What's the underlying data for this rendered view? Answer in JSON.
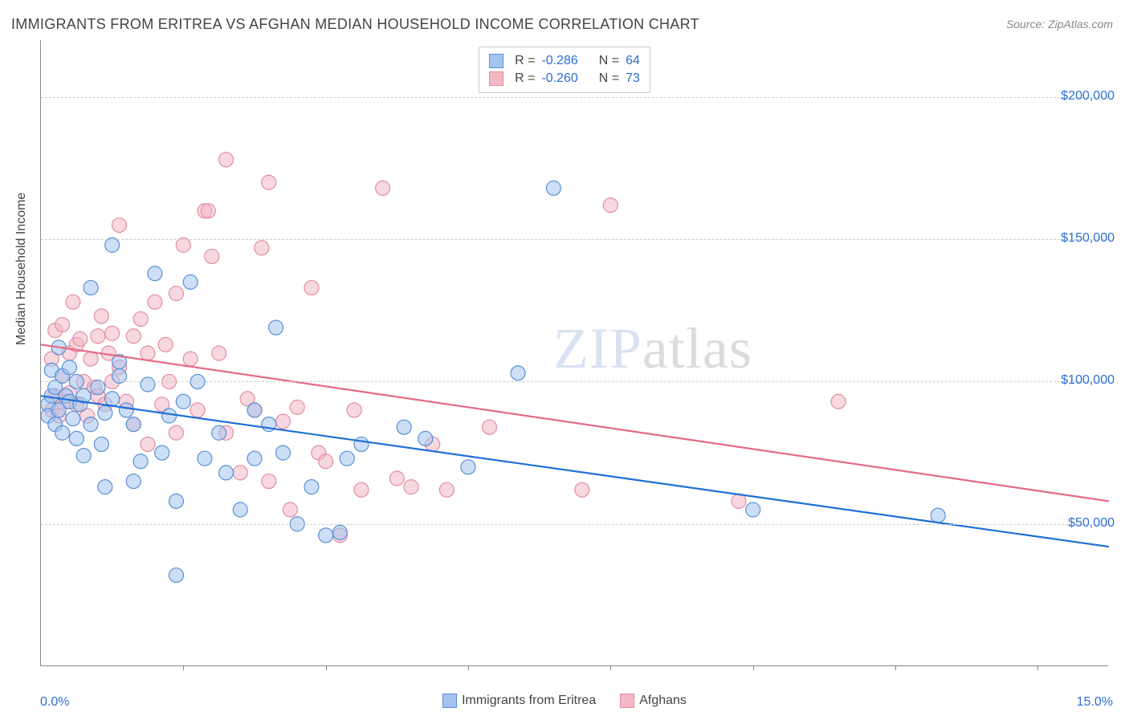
{
  "title": "IMMIGRANTS FROM ERITREA VS AFGHAN MEDIAN HOUSEHOLD INCOME CORRELATION CHART",
  "source": "Source: ZipAtlas.com",
  "watermark_a": "ZIP",
  "watermark_b": "atlas",
  "y_axis_label": "Median Household Income",
  "chart": {
    "type": "scatter",
    "xlim": [
      0,
      15
    ],
    "ylim": [
      0,
      220000
    ],
    "x_ticks": [
      0,
      2,
      4,
      6,
      8,
      10,
      12,
      14
    ],
    "x_tick_labels_shown": {
      "0": "0.0%",
      "15": "15.0%"
    },
    "y_grid": [
      50000,
      100000,
      150000,
      200000
    ],
    "y_tick_labels": {
      "50000": "$50,000",
      "100000": "$100,000",
      "150000": "$150,000",
      "200000": "$200,000"
    },
    "background_color": "#ffffff",
    "grid_color": "#cccccc",
    "axis_color": "#888888",
    "tick_label_color": "#2d6fd6",
    "text_color": "#444444",
    "marker_radius": 9,
    "marker_opacity": 0.55,
    "line_width": 2.2,
    "title_fontsize": 18,
    "label_fontsize": 16,
    "tick_fontsize": 16
  },
  "series": [
    {
      "name": "Immigrants from Eritrea",
      "fill_color": "#a3c4ef",
      "stroke_color": "#5a8fd6",
      "line_color": "#1f6fd6",
      "R": "-0.286",
      "N": "64",
      "regression": {
        "x1": 0,
        "y1": 95000,
        "x2": 15,
        "y2": 42000
      },
      "points": [
        [
          0.1,
          92000
        ],
        [
          0.1,
          88000
        ],
        [
          0.15,
          95000
        ],
        [
          0.15,
          104000
        ],
        [
          0.2,
          85000
        ],
        [
          0.2,
          98000
        ],
        [
          0.25,
          112000
        ],
        [
          0.25,
          90000
        ],
        [
          0.3,
          102000
        ],
        [
          0.3,
          82000
        ],
        [
          0.35,
          95000
        ],
        [
          0.4,
          105000
        ],
        [
          0.4,
          93000
        ],
        [
          0.45,
          87000
        ],
        [
          0.5,
          100000
        ],
        [
          0.5,
          80000
        ],
        [
          0.55,
          92000
        ],
        [
          0.6,
          95000
        ],
        [
          0.6,
          74000
        ],
        [
          0.7,
          133000
        ],
        [
          0.7,
          85000
        ],
        [
          0.8,
          98000
        ],
        [
          0.85,
          78000
        ],
        [
          0.9,
          89000
        ],
        [
          0.9,
          63000
        ],
        [
          1.0,
          148000
        ],
        [
          1.0,
          94000
        ],
        [
          1.1,
          107000
        ],
        [
          1.1,
          102000
        ],
        [
          1.2,
          90000
        ],
        [
          1.3,
          85000
        ],
        [
          1.4,
          72000
        ],
        [
          1.5,
          99000
        ],
        [
          1.6,
          138000
        ],
        [
          1.7,
          75000
        ],
        [
          1.8,
          88000
        ],
        [
          1.9,
          58000
        ],
        [
          1.9,
          32000
        ],
        [
          2.0,
          93000
        ],
        [
          2.1,
          135000
        ],
        [
          2.3,
          73000
        ],
        [
          2.5,
          82000
        ],
        [
          2.6,
          68000
        ],
        [
          2.8,
          55000
        ],
        [
          3.0,
          73000
        ],
        [
          3.0,
          90000
        ],
        [
          3.2,
          85000
        ],
        [
          3.3,
          119000
        ],
        [
          3.4,
          75000
        ],
        [
          3.6,
          50000
        ],
        [
          3.8,
          63000
        ],
        [
          4.0,
          46000
        ],
        [
          4.2,
          47000
        ],
        [
          4.3,
          73000
        ],
        [
          4.5,
          78000
        ],
        [
          5.1,
          84000
        ],
        [
          5.4,
          80000
        ],
        [
          6.0,
          70000
        ],
        [
          6.7,
          103000
        ],
        [
          7.2,
          168000
        ],
        [
          10.0,
          55000
        ],
        [
          12.6,
          53000
        ],
        [
          2.2,
          100000
        ],
        [
          1.3,
          65000
        ]
      ]
    },
    {
      "name": "Afghans",
      "fill_color": "#f3b8c6",
      "stroke_color": "#e28da0",
      "line_color": "#e46b87",
      "R": "-0.260",
      "N": "73",
      "regression": {
        "x1": 0,
        "y1": 113000,
        "x2": 15,
        "y2": 58000
      },
      "points": [
        [
          0.15,
          108000
        ],
        [
          0.15,
          90000
        ],
        [
          0.2,
          118000
        ],
        [
          0.2,
          95000
        ],
        [
          0.25,
          88000
        ],
        [
          0.3,
          102000
        ],
        [
          0.3,
          120000
        ],
        [
          0.35,
          93000
        ],
        [
          0.4,
          110000
        ],
        [
          0.4,
          96000
        ],
        [
          0.45,
          128000
        ],
        [
          0.5,
          113000
        ],
        [
          0.5,
          92000
        ],
        [
          0.55,
          115000
        ],
        [
          0.6,
          100000
        ],
        [
          0.65,
          88000
        ],
        [
          0.7,
          108000
        ],
        [
          0.75,
          98000
        ],
        [
          0.8,
          95000
        ],
        [
          0.8,
          116000
        ],
        [
          0.85,
          123000
        ],
        [
          0.9,
          92000
        ],
        [
          0.95,
          110000
        ],
        [
          1.0,
          100000
        ],
        [
          1.0,
          117000
        ],
        [
          1.1,
          155000
        ],
        [
          1.1,
          105000
        ],
        [
          1.2,
          93000
        ],
        [
          1.3,
          116000
        ],
        [
          1.3,
          85000
        ],
        [
          1.4,
          122000
        ],
        [
          1.5,
          110000
        ],
        [
          1.5,
          78000
        ],
        [
          1.6,
          128000
        ],
        [
          1.7,
          92000
        ],
        [
          1.75,
          113000
        ],
        [
          1.8,
          100000
        ],
        [
          1.9,
          82000
        ],
        [
          1.9,
          131000
        ],
        [
          2.0,
          148000
        ],
        [
          2.1,
          108000
        ],
        [
          2.2,
          90000
        ],
        [
          2.3,
          160000
        ],
        [
          2.4,
          144000
        ],
        [
          2.5,
          110000
        ],
        [
          2.6,
          82000
        ],
        [
          2.6,
          178000
        ],
        [
          2.35,
          160000
        ],
        [
          2.8,
          68000
        ],
        [
          2.9,
          94000
        ],
        [
          3.0,
          90000
        ],
        [
          3.1,
          147000
        ],
        [
          3.2,
          170000
        ],
        [
          3.2,
          65000
        ],
        [
          3.4,
          86000
        ],
        [
          3.6,
          91000
        ],
        [
          3.8,
          133000
        ],
        [
          3.9,
          75000
        ],
        [
          4.0,
          72000
        ],
        [
          4.2,
          46000
        ],
        [
          4.4,
          90000
        ],
        [
          4.5,
          62000
        ],
        [
          4.8,
          168000
        ],
        [
          5.0,
          66000
        ],
        [
          5.2,
          63000
        ],
        [
          5.5,
          78000
        ],
        [
          5.7,
          62000
        ],
        [
          6.3,
          84000
        ],
        [
          7.6,
          62000
        ],
        [
          8.0,
          162000
        ],
        [
          9.8,
          58000
        ],
        [
          11.2,
          93000
        ],
        [
          3.5,
          55000
        ]
      ]
    }
  ],
  "top_legend": {
    "R_label": "R =",
    "N_label": "N ="
  },
  "bottom_legend_labels": [
    "Immigrants from Eritrea",
    "Afghans"
  ]
}
